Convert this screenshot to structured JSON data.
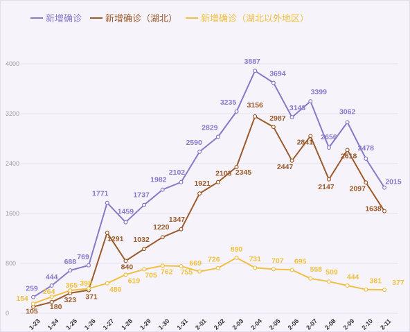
{
  "chart_data": {
    "type": "line",
    "title": "",
    "xlabel": "",
    "ylabel": "",
    "ylim": [
      0,
      4400
    ],
    "yticks": [
      0,
      800,
      1600,
      2400,
      3200,
      4000
    ],
    "grid": true,
    "legend_position": "top-left",
    "categories": [
      "1-23",
      "1-24",
      "1-25",
      "1-26",
      "1-27",
      "1-28",
      "1-29",
      "1-30",
      "1-31",
      "2-01",
      "2-02",
      "2-03",
      "2-04",
      "2-05",
      "2-06",
      "2-07",
      "2-08",
      "2-09",
      "2-10",
      "2-11"
    ],
    "series": [
      {
        "name": "新增确诊",
        "color": "#8878c8",
        "values": [
          259,
          444,
          688,
          769,
          1771,
          1459,
          1737,
          1982,
          2102,
          2590,
          2829,
          3235,
          3887,
          3694,
          3143,
          3399,
          2656,
          3062,
          2478,
          2015
        ]
      },
      {
        "name": "新增确诊（湖北）",
        "color": "#9c5a2a",
        "values": [
          105,
          180,
          323,
          371,
          1291,
          840,
          1032,
          1220,
          1347,
          1921,
          2103,
          2345,
          3156,
          2987,
          2447,
          2841,
          2147,
          2618,
          2097,
          1638
        ]
      },
      {
        "name": "新增确诊（湖北以外地区）",
        "color": "#f0c040",
        "values": [
          154,
          264,
          365,
          398,
          480,
          619,
          705,
          762,
          755,
          669,
          726,
          890,
          731,
          707,
          695,
          558,
          509,
          444,
          381,
          377
        ]
      }
    ]
  },
  "colors": {
    "background": "#f6f3fb",
    "grid": "#e6e1ef",
    "axis_tick": "#9a9aa8"
  }
}
